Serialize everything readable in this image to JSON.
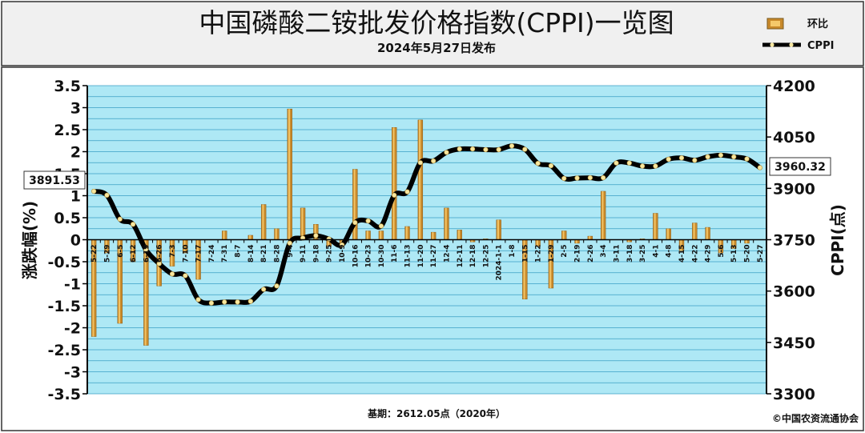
{
  "header": {
    "title": "中国磷酸二铵批发价格指数(CPPI)一览图",
    "subtitle": "2024年5月27日发布"
  },
  "legend": {
    "bar_label": "环比",
    "line_label": "CPPI"
  },
  "footer": {
    "base_note": "基期：2612.05点（2020年）",
    "copyright": "©中国农资流通协会"
  },
  "callouts": {
    "first_value": "3891.53",
    "last_value": "3960.32"
  },
  "colors": {
    "plot_bg": "#aee8f5",
    "gridline": "#3a9fc4",
    "bar": "#c8892a",
    "bar_highlight": "#f5c96a",
    "line": "#000000",
    "marker": "#f6e6a0",
    "header_bg": "#f0f0f0"
  },
  "chart_data": {
    "type": "bar+line",
    "categories": [
      "5-22",
      "5-29",
      "6-5",
      "6-12",
      "6-19",
      "6-26",
      "7-3",
      "7-10",
      "7-17",
      "7-24",
      "7-31",
      "8-7",
      "8-14",
      "8-21",
      "8-28",
      "9-4",
      "9-11",
      "9-18",
      "9-25",
      "10-9",
      "10-16",
      "10-23",
      "10-30",
      "11-6",
      "11-13",
      "11-20",
      "11-27",
      "12-4",
      "12-11",
      "12-18",
      "12-25",
      "2024-1-1",
      "1-8",
      "1-15",
      "1-22",
      "1-29",
      "2-5",
      "2-19",
      "2-26",
      "3-4",
      "3-11",
      "3-18",
      "3-25",
      "4-1",
      "4-8",
      "4-15",
      "4-22",
      "4-29",
      "5-6",
      "5-13",
      "5-20",
      "5-27"
    ],
    "series": [
      {
        "name": "环比",
        "axis": "left",
        "values": [
          -2.2,
          -0.3,
          -1.9,
          -0.5,
          -2.4,
          -1.05,
          -0.6,
          -0.3,
          -0.9,
          0.0,
          0.2,
          0.0,
          0.1,
          0.8,
          0.25,
          2.97,
          0.72,
          0.35,
          -0.15,
          -0.1,
          1.6,
          0.2,
          0.2,
          2.55,
          0.3,
          2.72,
          0.17,
          0.72,
          0.22,
          -0.05,
          0.02,
          0.45,
          0.0,
          -1.35,
          -0.15,
          -1.1,
          0.2,
          -0.08,
          0.08,
          1.1,
          0.0,
          -0.05,
          0.02,
          0.6,
          0.25,
          -0.25,
          0.38,
          0.28,
          -0.3,
          -0.2,
          -0.08,
          0.0
        ]
      },
      {
        "name": "CPPI",
        "axis": "right",
        "values": [
          3891.53,
          3880,
          3810,
          3795,
          3720,
          3680,
          3650,
          3645,
          3575,
          3565,
          3568,
          3568,
          3570,
          3605,
          3615,
          3740,
          3755,
          3762,
          3752,
          3735,
          3800,
          3805,
          3790,
          3880,
          3890,
          3975,
          3980,
          4005,
          4015,
          4015,
          4013,
          4013,
          4024,
          4014,
          3973,
          3966,
          3929,
          3930,
          3931,
          3931,
          3974,
          3974,
          3965,
          3965,
          3985,
          3989,
          3982,
          3992,
          3997,
          3992,
          3986,
          3960.32
        ]
      }
    ],
    "y_left": {
      "label": "涨跌幅(%)",
      "range": [
        -3.5,
        3.5
      ],
      "ticks": [
        "3.5",
        "3",
        "2.5",
        "2",
        "1.5",
        "1",
        "0.5",
        "0",
        "-0.5",
        "-1",
        "-1.5",
        "-2",
        "-2.5",
        "-3",
        "-3.5"
      ]
    },
    "y_right": {
      "label": "CPPI(点)",
      "range": [
        3300,
        4200
      ],
      "ticks": [
        "4200",
        "4050",
        "3900",
        "3750",
        "3600",
        "3450",
        "3300"
      ]
    },
    "grid": true,
    "legend_position": "top-right"
  }
}
